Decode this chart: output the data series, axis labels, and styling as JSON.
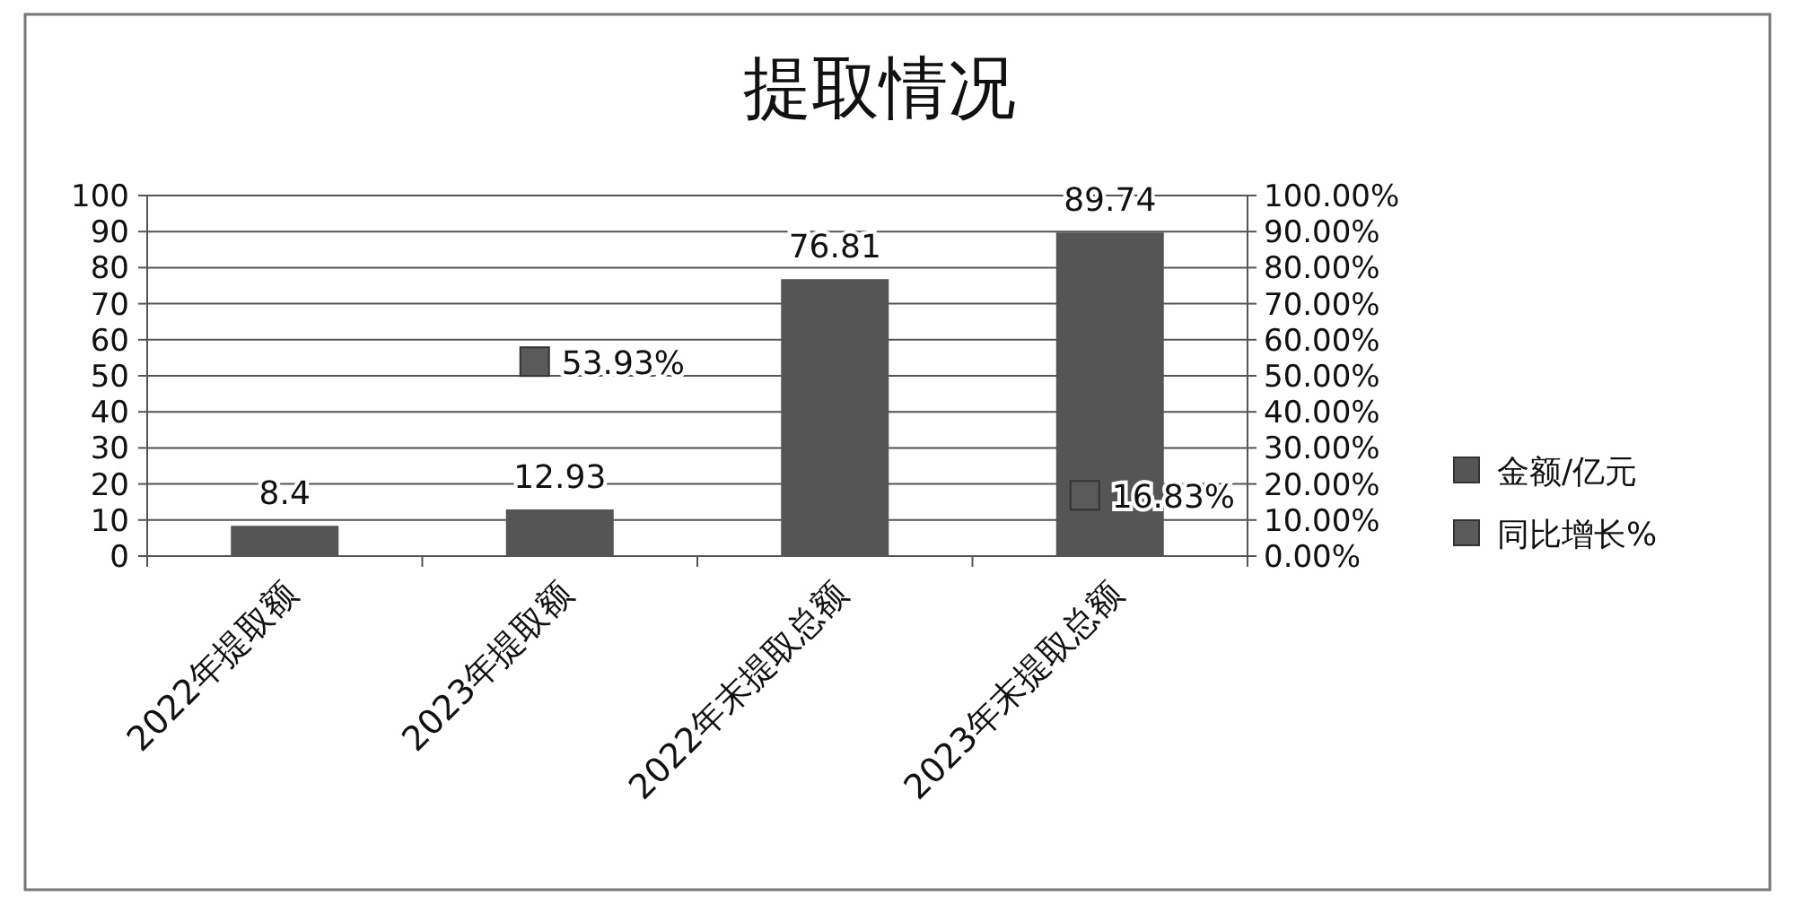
{
  "chart_data": {
    "type": "bar",
    "title": "提取情况",
    "categories": [
      "2022年提取额",
      "2023年提取额",
      "2022年末提取总额",
      "2023年末提取总额"
    ],
    "series": [
      {
        "name": "金额/亿元",
        "color": "#555555",
        "values": [
          8.4,
          12.93,
          76.81,
          89.74
        ],
        "value_labels": [
          "8.4",
          "12.93",
          "76.81",
          "89.74"
        ]
      },
      {
        "name": "同比增长%",
        "type": "scatter",
        "axis": "y2",
        "color": "#5a5a5a",
        "values": [
          null,
          53.93,
          null,
          16.83
        ],
        "value_labels": [
          null,
          "53.93%",
          null,
          "16.83%"
        ]
      }
    ],
    "ylim": [
      0,
      100
    ],
    "yticks": [
      0,
      10,
      20,
      30,
      40,
      50,
      60,
      70,
      80,
      90,
      100
    ],
    "y2lim": [
      0,
      100
    ],
    "y2ticks": [
      {
        "value": 0,
        "label": "0.00%"
      },
      {
        "value": 10,
        "label": "10.00%"
      },
      {
        "value": 20,
        "label": "20.00%"
      },
      {
        "value": 30,
        "label": "30.00%"
      },
      {
        "value": 40,
        "label": "40.00%"
      },
      {
        "value": 50,
        "label": "50.00%"
      },
      {
        "value": 60,
        "label": "60.00%"
      },
      {
        "value": 70,
        "label": "70.00%"
      },
      {
        "value": 80,
        "label": "80.00%"
      },
      {
        "value": 90,
        "label": "90.00%"
      },
      {
        "value": 100,
        "label": "100.00%"
      }
    ],
    "grid": "y",
    "legend": "right",
    "marker": "square"
  }
}
